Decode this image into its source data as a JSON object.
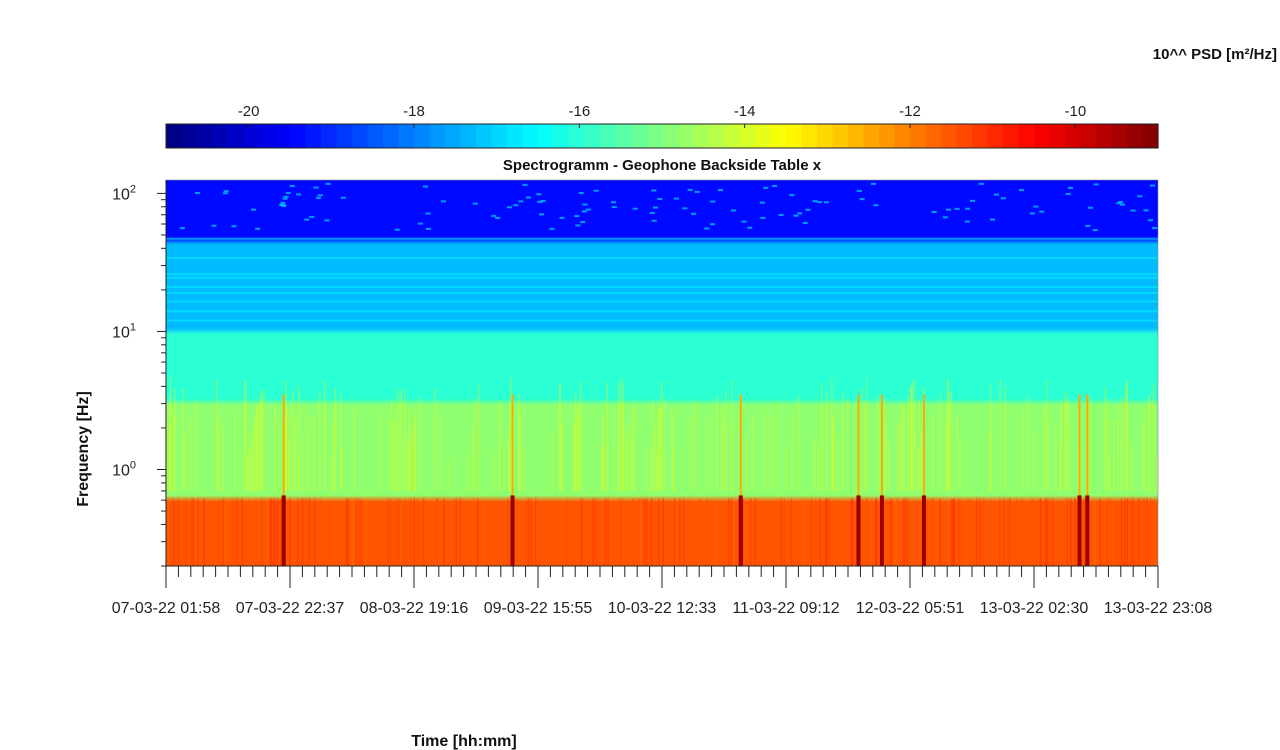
{
  "colorbar": {
    "title": "10^^ PSD [m²/Hz]",
    "range": [
      -21.0,
      -9.0
    ],
    "ticks": [
      -20,
      -18,
      -16,
      -14,
      -12,
      -10
    ],
    "colormap": "jet"
  },
  "chart_data": {
    "type": "heatmap",
    "title": "Spectrogramm - Geophone Backside Table x",
    "xlabel": "Time [hh:mm]",
    "ylabel": "Frequency [Hz]",
    "y_scale": "log",
    "ylim": [
      0.2,
      125
    ],
    "y_ticks": [
      {
        "value": 1,
        "base": "10",
        "exp": "0"
      },
      {
        "value": 10,
        "base": "10",
        "exp": "1"
      },
      {
        "value": 100,
        "base": "10",
        "exp": "2"
      }
    ],
    "x_tick_labels": [
      "07-03-22  01:58",
      "07-03-22  22:37",
      "08-03-22  19:16",
      "09-03-22  15:55",
      "10-03-22  12:33",
      "11-03-22  09:12",
      "12-03-22  05:51",
      "13-03-22  02:30",
      "13-03-22  23:08"
    ],
    "x_range_hours": [
      0,
      165.17
    ],
    "value_units": "log10 PSD [m²/Hz]",
    "bands": [
      {
        "f_low": 0.2,
        "f_high": 0.65,
        "level": -11.5
      },
      {
        "f_low": 0.65,
        "f_high": 3.0,
        "level": -14.8
      },
      {
        "f_low": 3.0,
        "f_high": 10.0,
        "level": -16.0
      },
      {
        "f_low": 10.0,
        "f_high": 45.0,
        "level": -17.3
      },
      {
        "f_low": 45.0,
        "f_high": 125.0,
        "level": -19.4
      }
    ],
    "events_hours": [
      19.6,
      57.7,
      95.7,
      115.3,
      119.2,
      126.2,
      152.1,
      153.4
    ]
  }
}
